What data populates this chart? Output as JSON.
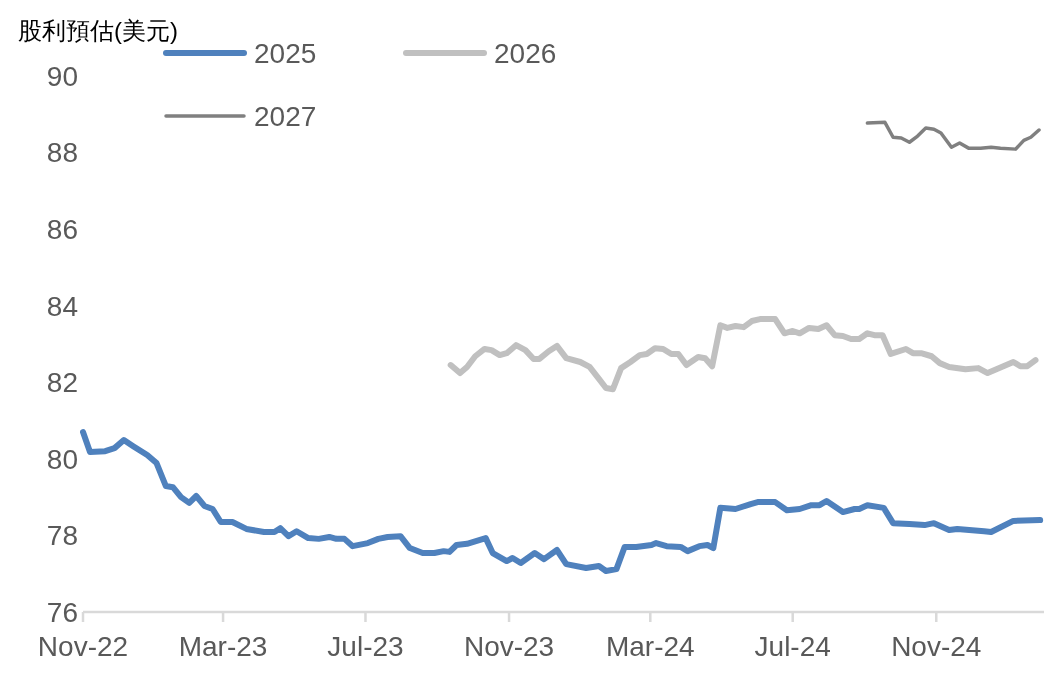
{
  "chart_data": {
    "type": "line",
    "ylabel": "股利預估(美元)",
    "xlim": [
      "2022-11-01",
      "2025-02-03"
    ],
    "xticks": [
      {
        "value": "2022-11-01",
        "label": "Nov-22"
      },
      {
        "value": "2023-03-01",
        "label": "Mar-23"
      },
      {
        "value": "2023-07-01",
        "label": "Jul-23"
      },
      {
        "value": "2023-11-01",
        "label": "Nov-23"
      },
      {
        "value": "2024-03-01",
        "label": "Mar-24"
      },
      {
        "value": "2024-07-01",
        "label": "Jul-24"
      },
      {
        "value": "2024-11-01",
        "label": "Nov-24"
      }
    ],
    "ylim": [
      76,
      90
    ],
    "yticks": [
      76,
      78,
      80,
      82,
      84,
      86,
      88,
      90
    ],
    "grid": false,
    "legend": "top left",
    "line_style": "solid",
    "marker": "none",
    "series": [
      {
        "name": "2025",
        "color": "#4f81bd",
        "x": [
          "2022-11-01",
          "2022-11-07",
          "2022-11-20",
          "2022-11-28",
          "2022-12-06",
          "2022-12-14",
          "2022-12-26",
          "2023-01-03",
          "2023-01-11",
          "2023-01-17",
          "2023-01-24",
          "2023-01-31",
          "2023-02-06",
          "2023-02-13",
          "2023-02-20",
          "2023-02-27",
          "2023-03-09",
          "2023-03-21",
          "2023-04-05",
          "2023-04-14",
          "2023-04-19",
          "2023-04-26",
          "2023-05-03",
          "2023-05-13",
          "2023-05-22",
          "2023-05-31",
          "2023-06-06",
          "2023-06-13",
          "2023-06-20",
          "2023-07-03",
          "2023-07-12",
          "2023-07-20",
          "2023-07-31",
          "2023-08-08",
          "2023-08-19",
          "2023-08-29",
          "2023-09-06",
          "2023-09-11",
          "2023-09-17",
          "2023-09-26",
          "2023-10-12",
          "2023-10-18",
          "2023-10-30",
          "2023-11-04",
          "2023-11-11",
          "2023-11-23",
          "2023-12-01",
          "2023-12-12",
          "2023-12-20",
          "2024-01-06",
          "2024-01-17",
          "2024-01-23",
          "2024-02-01",
          "2024-02-08",
          "2024-02-18",
          "2024-03-02",
          "2024-03-06",
          "2024-03-15",
          "2024-03-27",
          "2024-04-02",
          "2024-04-12",
          "2024-04-19",
          "2024-04-24",
          "2024-04-30",
          "2024-05-13",
          "2024-05-26",
          "2024-06-01",
          "2024-06-16",
          "2024-06-26",
          "2024-07-07",
          "2024-07-17",
          "2024-07-24",
          "2024-07-30",
          "2024-08-13",
          "2024-08-23",
          "2024-08-27",
          "2024-09-03",
          "2024-09-17",
          "2024-09-25",
          "2024-10-09",
          "2024-10-22",
          "2024-10-30",
          "2024-11-12",
          "2024-11-19",
          "2024-12-12",
          "2024-12-18",
          "2025-01-06",
          "2025-01-29"
        ],
        "values": [
          80.7,
          80.18,
          80.2,
          80.28,
          80.49,
          80.33,
          80.1,
          79.89,
          79.29,
          79.26,
          79.0,
          78.85,
          79.03,
          78.77,
          78.69,
          78.35,
          78.35,
          78.17,
          78.09,
          78.09,
          78.19,
          77.98,
          78.11,
          77.93,
          77.91,
          77.96,
          77.91,
          77.91,
          77.72,
          77.8,
          77.91,
          77.96,
          77.98,
          77.67,
          77.54,
          77.54,
          77.59,
          77.57,
          77.75,
          77.78,
          77.93,
          77.54,
          77.33,
          77.41,
          77.28,
          77.54,
          77.38,
          77.62,
          77.25,
          77.15,
          77.2,
          77.07,
          77.12,
          77.7,
          77.7,
          77.75,
          77.8,
          77.72,
          77.7,
          77.59,
          77.72,
          77.75,
          77.67,
          78.72,
          78.69,
          78.82,
          78.87,
          78.87,
          78.66,
          78.69,
          78.79,
          78.79,
          78.9,
          78.61,
          78.69,
          78.69,
          78.79,
          78.72,
          78.32,
          78.3,
          78.27,
          78.32,
          78.14,
          78.17,
          78.11,
          78.09,
          78.38,
          78.4
        ]
      },
      {
        "name": "2026",
        "color": "#c0c0c0",
        "x": [
          "2023-09-12",
          "2023-09-20",
          "2023-09-26",
          "2023-10-03",
          "2023-10-11",
          "2023-10-17",
          "2023-10-24",
          "2023-10-30",
          "2023-11-07",
          "2023-11-15",
          "2023-11-22",
          "2023-11-27",
          "2023-12-05",
          "2023-12-12",
          "2023-12-20",
          "2024-01-01",
          "2024-01-09",
          "2024-01-17",
          "2024-01-23",
          "2024-01-29",
          "2024-02-05",
          "2024-02-13",
          "2024-02-21",
          "2024-02-27",
          "2024-03-05",
          "2024-03-12",
          "2024-03-19",
          "2024-03-25",
          "2024-04-01",
          "2024-04-11",
          "2024-04-17",
          "2024-04-23",
          "2024-04-30",
          "2024-05-06",
          "2024-05-13",
          "2024-05-20",
          "2024-05-27",
          "2024-06-03",
          "2024-06-16",
          "2024-06-24",
          "2024-07-01",
          "2024-07-07",
          "2024-07-15",
          "2024-07-23",
          "2024-07-30",
          "2024-08-06",
          "2024-08-13",
          "2024-08-20",
          "2024-08-27",
          "2024-09-03",
          "2024-09-09",
          "2024-09-16",
          "2024-09-23",
          "2024-10-06",
          "2024-10-12",
          "2024-10-19",
          "2024-10-28",
          "2024-11-04",
          "2024-11-12",
          "2024-11-26",
          "2024-12-07",
          "2024-12-15",
          "2025-01-06",
          "2025-01-12",
          "2025-01-18",
          "2025-01-25"
        ],
        "values": [
          82.45,
          82.24,
          82.4,
          82.68,
          82.87,
          82.84,
          82.71,
          82.76,
          82.97,
          82.84,
          82.61,
          82.61,
          82.81,
          82.95,
          82.63,
          82.53,
          82.4,
          82.09,
          81.85,
          81.82,
          82.37,
          82.53,
          82.71,
          82.74,
          82.89,
          82.87,
          82.74,
          82.74,
          82.45,
          82.66,
          82.63,
          82.42,
          83.49,
          83.42,
          83.47,
          83.44,
          83.6,
          83.65,
          83.65,
          83.28,
          83.34,
          83.28,
          83.42,
          83.39,
          83.49,
          83.23,
          83.21,
          83.13,
          83.13,
          83.28,
          83.23,
          83.23,
          82.74,
          82.87,
          82.76,
          82.76,
          82.68,
          82.5,
          82.4,
          82.34,
          82.37,
          82.24,
          82.53,
          82.42,
          82.42,
          82.58
        ]
      },
      {
        "name": "2027",
        "color": "#808080",
        "x": [
          "2024-09-03",
          "2024-09-18",
          "2024-09-25",
          "2024-10-02",
          "2024-10-09",
          "2024-10-16",
          "2024-10-23",
          "2024-10-30",
          "2024-11-05",
          "2024-11-14",
          "2024-11-21",
          "2024-11-29",
          "2024-12-09",
          "2024-12-18",
          "2024-12-26",
          "2025-01-08",
          "2025-01-15",
          "2025-01-21",
          "2025-01-28"
        ],
        "values": [
          88.77,
          88.79,
          88.4,
          88.38,
          88.27,
          88.43,
          88.64,
          88.61,
          88.51,
          88.14,
          88.25,
          88.11,
          88.11,
          88.14,
          88.11,
          88.09,
          88.32,
          88.4,
          88.59
        ]
      }
    ]
  }
}
